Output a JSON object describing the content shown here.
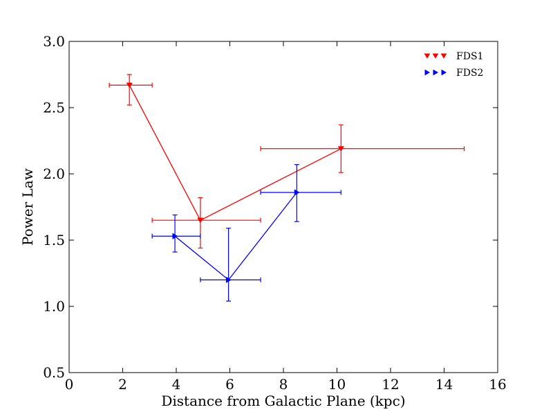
{
  "chart_data": {
    "type": "line",
    "title": "",
    "xlabel": "Distance from Galactic Plane (kpc)",
    "ylabel": "Power Law",
    "xlim": [
      0,
      16
    ],
    "ylim": [
      0.5,
      3.0
    ],
    "xticks": [
      0,
      2,
      4,
      6,
      8,
      10,
      12,
      14,
      16
    ],
    "xtick_labels": [
      "0",
      "2",
      "4",
      "6",
      "8",
      "10",
      "12",
      "14",
      "16"
    ],
    "yticks": [
      0.5,
      1.0,
      1.5,
      2.0,
      2.5,
      3.0
    ],
    "ytick_labels": [
      "0.5",
      "1.0",
      "1.5",
      "2.0",
      "2.5",
      "3.0"
    ],
    "grid": false,
    "legend_position": "top-right",
    "series": [
      {
        "name": "FDS1",
        "color": "#ff0000",
        "marker": "triangle-down",
        "points": [
          {
            "x": 2.25,
            "y": 2.67,
            "xerr_lo": 1.5,
            "xerr_hi": 3.1,
            "yerr_lo": 2.52,
            "yerr_hi": 2.75
          },
          {
            "x": 4.9,
            "y": 1.65,
            "xerr_lo": 3.1,
            "xerr_hi": 7.15,
            "yerr_lo": 1.44,
            "yerr_hi": 1.82
          },
          {
            "x": 10.15,
            "y": 2.19,
            "xerr_lo": 7.15,
            "xerr_hi": 14.75,
            "yerr_lo": 2.01,
            "yerr_hi": 2.37
          }
        ]
      },
      {
        "name": "FDS2",
        "color": "#0000ff",
        "marker": "triangle-right",
        "points": [
          {
            "x": 3.95,
            "y": 1.53,
            "xerr_lo": 3.1,
            "xerr_hi": 4.9,
            "yerr_lo": 1.41,
            "yerr_hi": 1.69
          },
          {
            "x": 5.95,
            "y": 1.2,
            "xerr_lo": 4.9,
            "xerr_hi": 7.15,
            "yerr_lo": 1.04,
            "yerr_hi": 1.59
          },
          {
            "x": 8.5,
            "y": 1.86,
            "xerr_lo": 7.15,
            "xerr_hi": 10.15,
            "yerr_lo": 1.64,
            "yerr_hi": 2.07
          }
        ]
      }
    ]
  }
}
